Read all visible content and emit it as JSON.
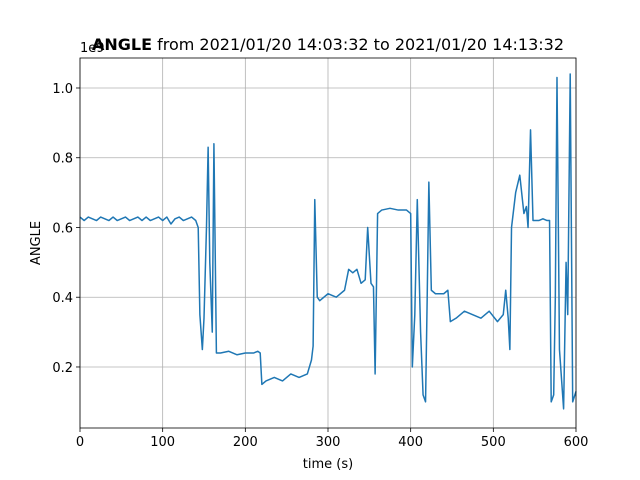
{
  "chart_data": {
    "type": "line",
    "title": {
      "bold": "ANGLE",
      "text": "from 2021/01/20 14:03:32 to 2021/01/20 14:13:32"
    },
    "x_label": "time (s)",
    "y_label": "ANGLE",
    "y_offset_text": "1e9",
    "x": [
      0,
      5,
      10,
      15,
      20,
      25,
      30,
      35,
      40,
      45,
      50,
      55,
      60,
      65,
      70,
      75,
      80,
      85,
      90,
      95,
      100,
      105,
      110,
      115,
      120,
      125,
      130,
      135,
      140,
      143,
      145,
      148,
      150,
      153,
      155,
      157,
      160,
      162,
      165,
      170,
      180,
      190,
      200,
      210,
      215,
      218,
      220,
      225,
      235,
      245,
      255,
      265,
      275,
      280,
      282,
      284,
      287,
      290,
      300,
      310,
      320,
      325,
      330,
      335,
      340,
      345,
      348,
      352,
      355,
      357,
      360,
      365,
      375,
      385,
      395,
      400,
      402,
      405,
      408,
      412,
      415,
      418,
      420,
      422,
      425,
      430,
      440,
      445,
      448,
      455,
      465,
      475,
      485,
      495,
      505,
      512,
      515,
      518,
      520,
      522,
      527,
      532,
      537,
      540,
      542,
      545,
      548,
      555,
      560,
      565,
      568,
      570,
      573,
      575,
      577,
      580,
      585,
      588,
      590,
      593,
      596,
      600
    ],
    "series": [
      {
        "name": "ANGLE",
        "color": "#1f77b4",
        "values": [
          0.63,
          0.62,
          0.63,
          0.625,
          0.62,
          0.63,
          0.625,
          0.62,
          0.63,
          0.62,
          0.625,
          0.63,
          0.62,
          0.625,
          0.63,
          0.62,
          0.63,
          0.62,
          0.625,
          0.63,
          0.62,
          0.63,
          0.61,
          0.625,
          0.63,
          0.62,
          0.625,
          0.63,
          0.62,
          0.6,
          0.35,
          0.25,
          0.34,
          0.6,
          0.83,
          0.5,
          0.3,
          0.84,
          0.24,
          0.24,
          0.245,
          0.235,
          0.24,
          0.24,
          0.245,
          0.24,
          0.15,
          0.16,
          0.17,
          0.16,
          0.18,
          0.17,
          0.18,
          0.22,
          0.26,
          0.68,
          0.4,
          0.39,
          0.41,
          0.4,
          0.42,
          0.48,
          0.47,
          0.48,
          0.44,
          0.45,
          0.6,
          0.44,
          0.43,
          0.18,
          0.64,
          0.65,
          0.655,
          0.65,
          0.65,
          0.64,
          0.2,
          0.35,
          0.68,
          0.3,
          0.12,
          0.1,
          0.4,
          0.73,
          0.42,
          0.41,
          0.41,
          0.42,
          0.33,
          0.34,
          0.36,
          0.35,
          0.34,
          0.36,
          0.33,
          0.35,
          0.42,
          0.34,
          0.25,
          0.6,
          0.7,
          0.75,
          0.64,
          0.66,
          0.6,
          0.88,
          0.62,
          0.62,
          0.625,
          0.62,
          0.62,
          0.1,
          0.12,
          0.4,
          1.03,
          0.25,
          0.08,
          0.5,
          0.35,
          1.04,
          0.1,
          0.13
        ]
      }
    ],
    "xlim": [
      0,
      600
    ],
    "ylim": [
      0.025,
      1.086
    ],
    "xticks": [
      0,
      100,
      200,
      300,
      400,
      500,
      600
    ],
    "yticks": [
      0.2,
      0.4,
      0.6,
      0.8,
      {
        "value": 1,
        "label": "1.0"
      }
    ],
    "grid": true
  }
}
